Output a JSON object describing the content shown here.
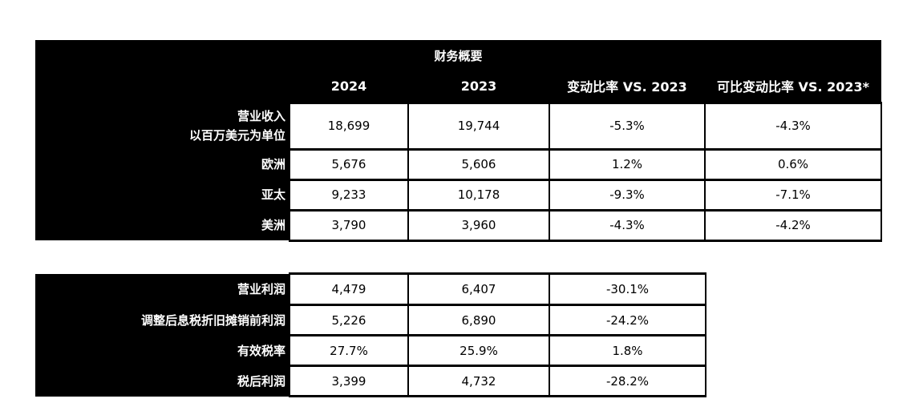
{
  "summary": {
    "title": "财务概要",
    "headers": [
      "2024",
      "2023",
      "变动比率 VS. 2023",
      "可比变动比率 VS. 2023*"
    ],
    "rows": [
      {
        "label_line1": "营业收入",
        "label_line2": "以百万美元为单位",
        "v2024": "18,699",
        "v2023": "19,744",
        "change": "-5.3%",
        "comparable": "-4.3%"
      },
      {
        "label": "欧洲",
        "v2024": "5,676",
        "v2023": "5,606",
        "change": "1.2%",
        "comparable": "0.6%"
      },
      {
        "label": "亚太",
        "v2024": "9,233",
        "v2023": "10,178",
        "change": "-9.3%",
        "comparable": "-7.1%"
      },
      {
        "label": "美洲",
        "v2024": "3,790",
        "v2023": "3,960",
        "change": "-4.3%",
        "comparable": "-4.2%"
      }
    ]
  },
  "profit": {
    "rows": [
      {
        "label": "营业利润",
        "v2024": "4,479",
        "v2023": "6,407",
        "change": "-30.1%"
      },
      {
        "label": "调整后息税折旧摊销前利润",
        "v2024": "5,226",
        "v2023": "6,890",
        "change": "-24.2%"
      },
      {
        "label": "有效税率",
        "v2024": "27.7%",
        "v2023": "25.9%",
        "change": "1.8%"
      },
      {
        "label": "税后利润",
        "v2024": "3,399",
        "v2023": "4,732",
        "change": "-28.2%"
      }
    ]
  }
}
